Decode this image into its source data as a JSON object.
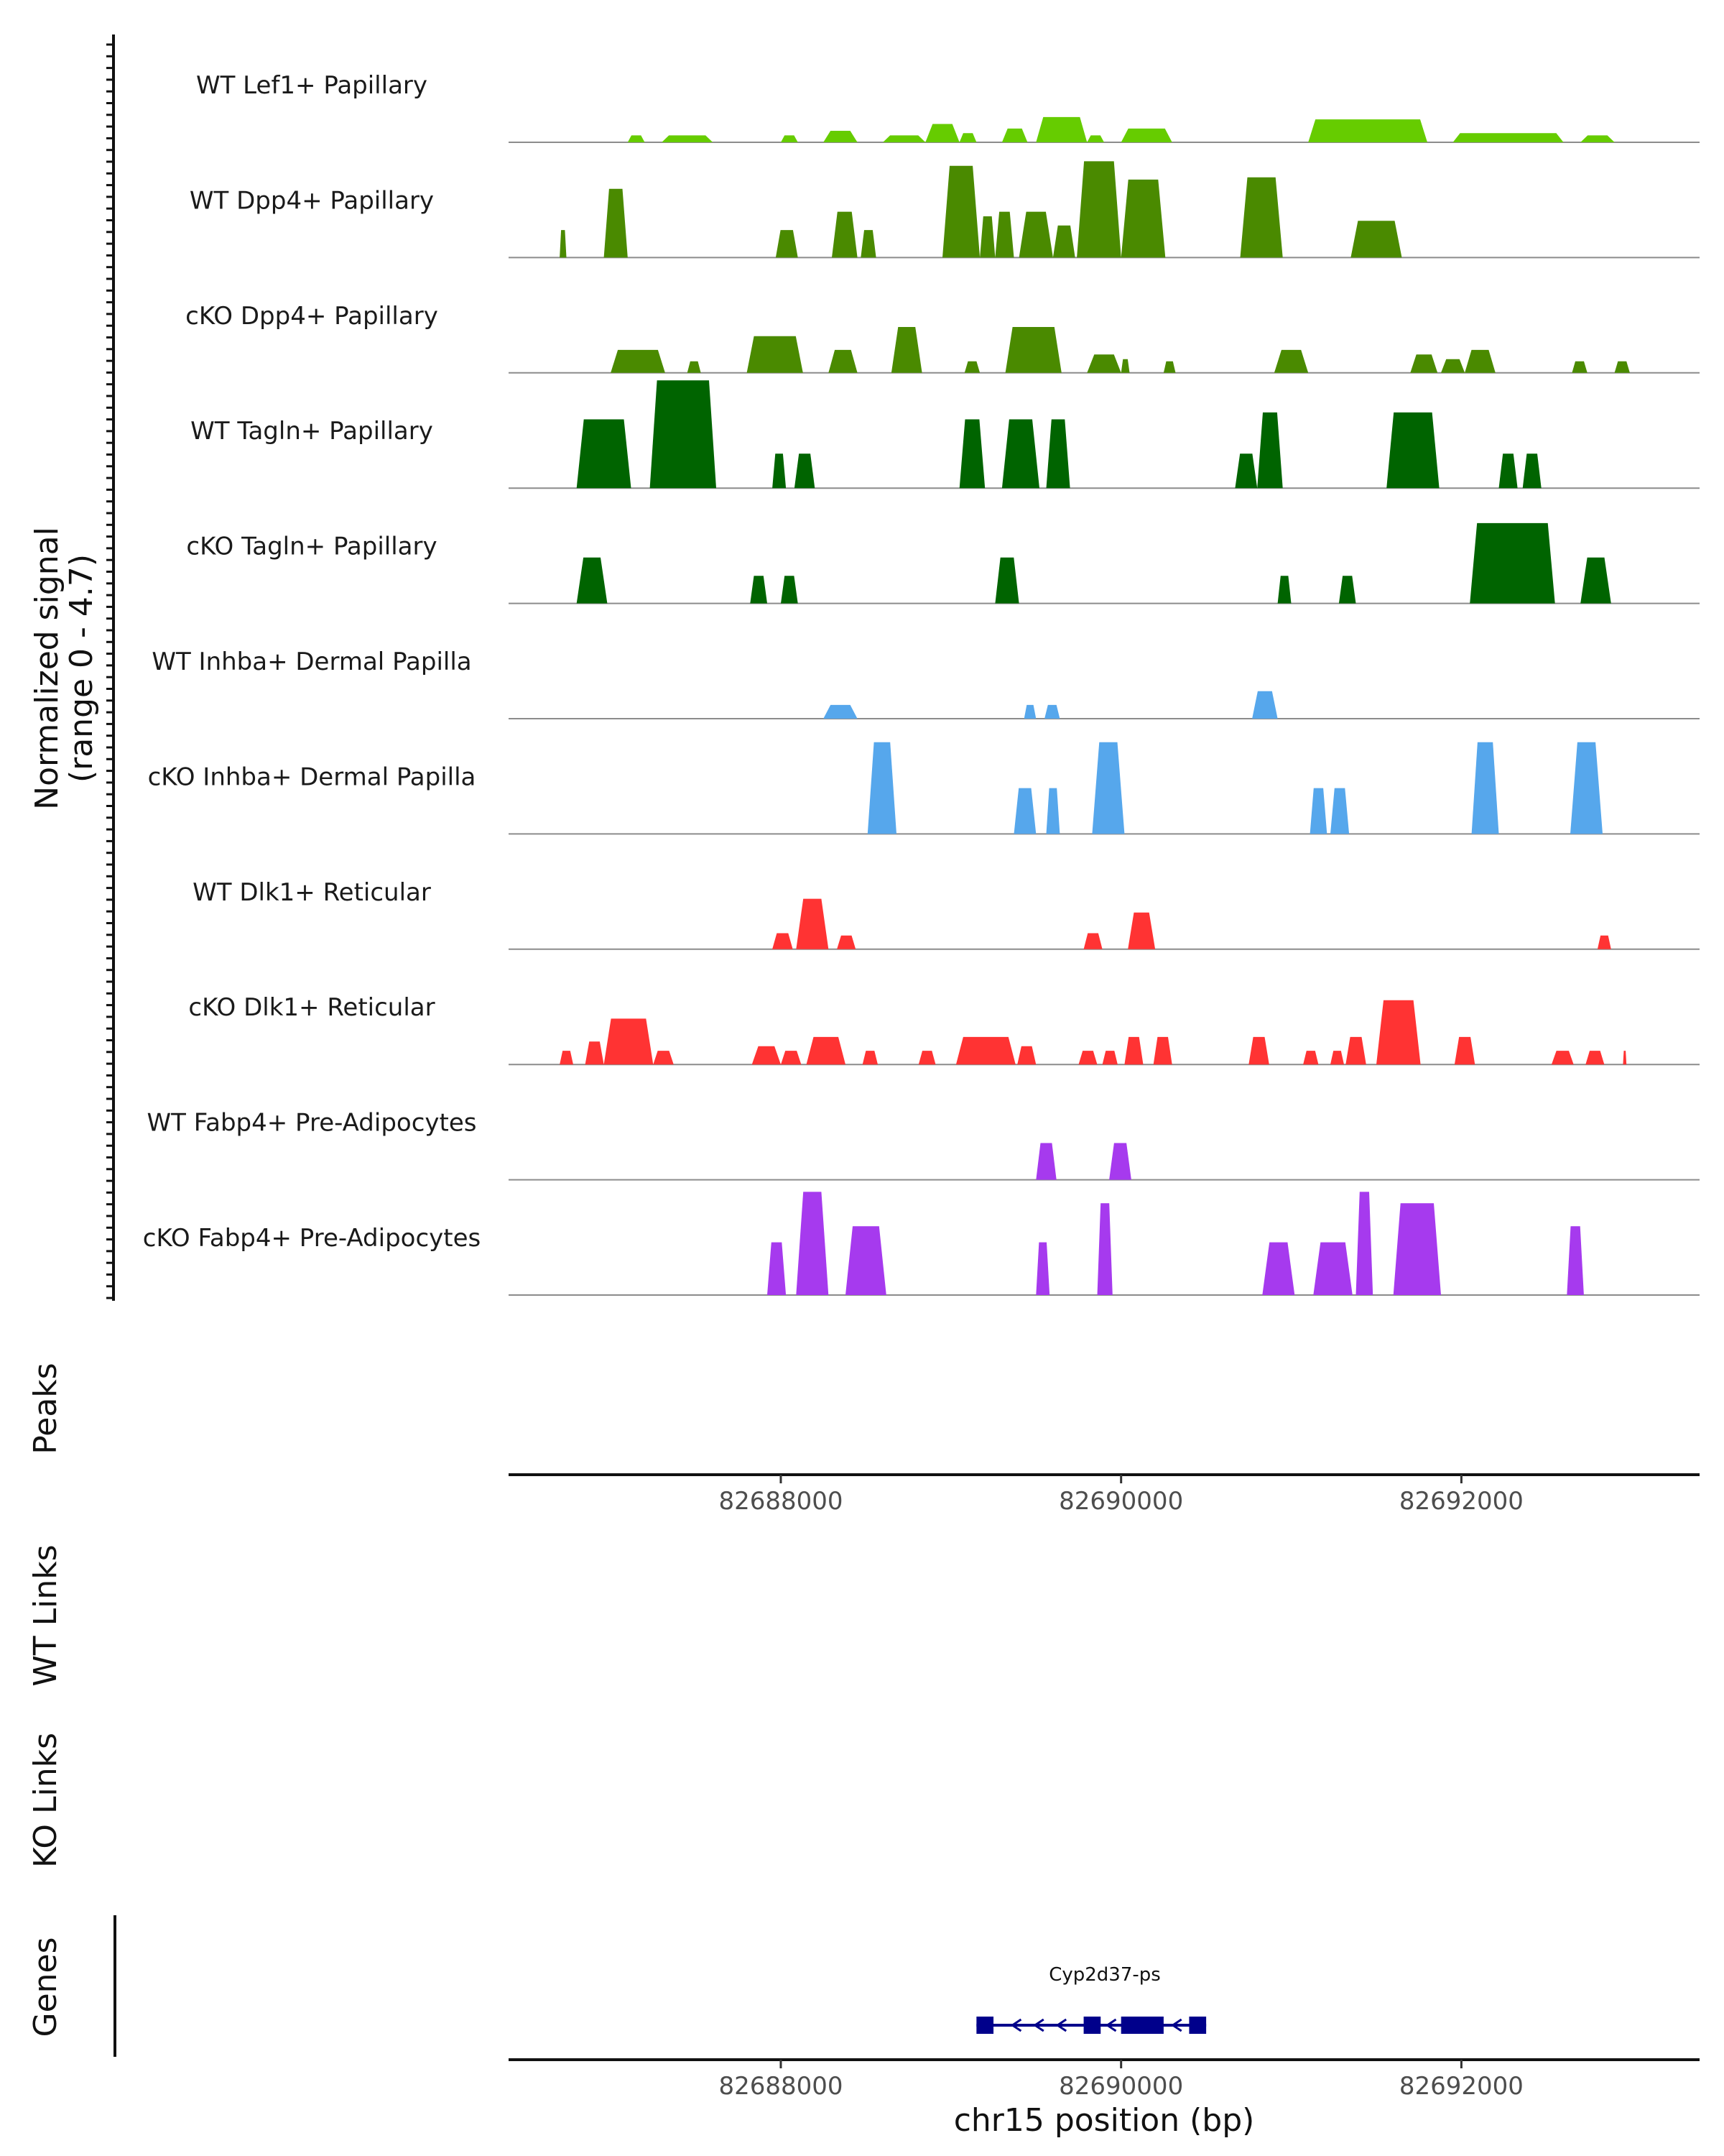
{
  "chart_data": {
    "type": "area",
    "chromosome": "chr15",
    "xlabel": "chr15 position (bp)",
    "xlim": [
      82686400,
      82693400
    ],
    "xticks": [
      82688000,
      82690000,
      82692000
    ],
    "xtick_labels": [
      "82688000",
      "82690000",
      "82692000"
    ],
    "ylabel_line1": "Normalized signal",
    "ylabel_line2": "(range 0 - 4.7)",
    "ylim": [
      0,
      4.7
    ],
    "tracks": [
      {
        "name": "WT Lef1+ Papillary",
        "color": "#66cc00",
        "peaks": [
          [
            82687100,
            82687200,
            0.3
          ],
          [
            82687300,
            82687600,
            0.3
          ],
          [
            82688000,
            82688100,
            0.3
          ],
          [
            82688250,
            82688450,
            0.5
          ],
          [
            82688600,
            82688850,
            0.3
          ],
          [
            82688850,
            82689050,
            0.8
          ],
          [
            82689050,
            82689150,
            0.4
          ],
          [
            82689300,
            82689450,
            0.6
          ],
          [
            82689500,
            82689800,
            1.1
          ],
          [
            82689800,
            82689900,
            0.3
          ],
          [
            82690000,
            82690300,
            0.6
          ],
          [
            82691100,
            82691800,
            1.0
          ],
          [
            82691950,
            82692600,
            0.4
          ],
          [
            82692700,
            82692900,
            0.3
          ]
        ]
      },
      {
        "name": "WT Dpp4+ Papillary",
        "color": "#4a8a00",
        "peaks": [
          [
            82686700,
            82686740,
            1.2
          ],
          [
            82686960,
            82687100,
            3.0
          ],
          [
            82687970,
            82688100,
            1.2
          ],
          [
            82688300,
            82688450,
            2.0
          ],
          [
            82688470,
            82688560,
            1.2
          ],
          [
            82688950,
            82689170,
            4.0
          ],
          [
            82689170,
            82689260,
            1.8
          ],
          [
            82689260,
            82689370,
            2.0
          ],
          [
            82689400,
            82689600,
            2.0
          ],
          [
            82689600,
            82689730,
            1.4
          ],
          [
            82689740,
            82690000,
            4.2
          ],
          [
            82690000,
            82690260,
            3.4
          ],
          [
            82690700,
            82690950,
            3.5
          ],
          [
            82691350,
            82691650,
            1.6
          ]
        ]
      },
      {
        "name": "cKO Dpp4+ Papillary",
        "color": "#4a8a00",
        "peaks": [
          [
            82687000,
            82687320,
            1.0
          ],
          [
            82687450,
            82687530,
            0.5
          ],
          [
            82687800,
            82688130,
            1.6
          ],
          [
            82688280,
            82688450,
            1.0
          ],
          [
            82688650,
            82688830,
            2.0
          ],
          [
            82689080,
            82689170,
            0.5
          ],
          [
            82689320,
            82689650,
            2.0
          ],
          [
            82689800,
            82690000,
            0.8
          ],
          [
            82690000,
            82690050,
            0.6
          ],
          [
            82690250,
            82690320,
            0.5
          ],
          [
            82690900,
            82691100,
            1.0
          ],
          [
            82691700,
            82691860,
            0.8
          ],
          [
            82691880,
            82692020,
            0.6
          ],
          [
            82692020,
            82692200,
            1.0
          ],
          [
            82692650,
            82692740,
            0.5
          ],
          [
            82692900,
            82692990,
            0.5
          ]
        ]
      },
      {
        "name": "WT Tagln+ Papillary",
        "color": "#006400",
        "peaks": [
          [
            82686800,
            82687120,
            3.0
          ],
          [
            82687230,
            82687620,
            4.7
          ],
          [
            82687950,
            82688030,
            1.5
          ],
          [
            82688080,
            82688200,
            1.5
          ],
          [
            82689050,
            82689200,
            3.0
          ],
          [
            82689300,
            82689520,
            3.0
          ],
          [
            82689560,
            82689700,
            3.0
          ],
          [
            82690670,
            82690800,
            1.5
          ],
          [
            82690800,
            82690950,
            3.3
          ],
          [
            82691560,
            82691870,
            3.3
          ],
          [
            82692220,
            82692330,
            1.5
          ],
          [
            82692360,
            82692470,
            1.5
          ]
        ]
      },
      {
        "name": "cKO Tagln+ Papillary",
        "color": "#006400",
        "peaks": [
          [
            82686800,
            82686980,
            2.0
          ],
          [
            82687820,
            82687920,
            1.2
          ],
          [
            82688000,
            82688100,
            1.2
          ],
          [
            82689260,
            82689400,
            2.0
          ],
          [
            82690920,
            82691000,
            1.2
          ],
          [
            82691280,
            82691380,
            1.2
          ],
          [
            82692050,
            82692550,
            3.5
          ],
          [
            82692700,
            82692880,
            2.0
          ]
        ]
      },
      {
        "name": "WT Inhba+ Dermal Papilla",
        "color": "#56a7ec",
        "peaks": [
          [
            82688250,
            82688450,
            0.6
          ],
          [
            82689430,
            82689500,
            0.6
          ],
          [
            82689550,
            82689640,
            0.6
          ],
          [
            82690770,
            82690920,
            1.2
          ]
        ]
      },
      {
        "name": "cKO Inhba+ Dermal Papilla",
        "color": "#56a7ec",
        "peaks": [
          [
            82688510,
            82688680,
            4.0
          ],
          [
            82689370,
            82689500,
            2.0
          ],
          [
            82689560,
            82689640,
            2.0
          ],
          [
            82689830,
            82690020,
            4.0
          ],
          [
            82691110,
            82691210,
            2.0
          ],
          [
            82691230,
            82691340,
            2.0
          ],
          [
            82692060,
            82692220,
            4.0
          ],
          [
            82692640,
            82692830,
            4.0
          ]
        ]
      },
      {
        "name": "WT Dlk1+ Reticular",
        "color": "#ff3333",
        "peaks": [
          [
            82687950,
            82688070,
            0.7
          ],
          [
            82688090,
            82688280,
            2.2
          ],
          [
            82688330,
            82688440,
            0.6
          ],
          [
            82689780,
            82689890,
            0.7
          ],
          [
            82690040,
            82690200,
            1.6
          ],
          [
            82692800,
            82692880,
            0.6
          ]
        ]
      },
      {
        "name": "cKO Dlk1+ Reticular",
        "color": "#ff3333",
        "peaks": [
          [
            82686700,
            82686780,
            0.6
          ],
          [
            82686850,
            82686960,
            1.0
          ],
          [
            82686960,
            82687250,
            2.0
          ],
          [
            82687250,
            82687370,
            0.6
          ],
          [
            82687830,
            82688000,
            0.8
          ],
          [
            82688000,
            82688120,
            0.6
          ],
          [
            82688150,
            82688380,
            1.2
          ],
          [
            82688480,
            82688570,
            0.6
          ],
          [
            82688810,
            82688910,
            0.6
          ],
          [
            82689030,
            82689380,
            1.2
          ],
          [
            82689390,
            82689500,
            0.8
          ],
          [
            82689750,
            82689860,
            0.6
          ],
          [
            82689890,
            82689980,
            0.6
          ],
          [
            82690020,
            82690130,
            1.2
          ],
          [
            82690190,
            82690300,
            1.2
          ],
          [
            82690750,
            82690870,
            1.2
          ],
          [
            82691070,
            82691160,
            0.6
          ],
          [
            82691230,
            82691310,
            0.6
          ],
          [
            82691320,
            82691440,
            1.2
          ],
          [
            82691500,
            82691760,
            2.8
          ],
          [
            82691960,
            82692080,
            1.2
          ],
          [
            82692530,
            82692660,
            0.6
          ],
          [
            82692730,
            82692840,
            0.6
          ],
          [
            82692950,
            82692970,
            0.6
          ]
        ]
      },
      {
        "name": "WT Fabp4+ Pre-Adipocytes",
        "color": "#a63aee",
        "peaks": [
          [
            82689500,
            82689620,
            1.6
          ],
          [
            82689930,
            82690060,
            1.6
          ]
        ]
      },
      {
        "name": "cKO Fabp4+ Pre-Adipocytes",
        "color": "#a63aee",
        "peaks": [
          [
            82687920,
            82688030,
            2.3
          ],
          [
            82688090,
            82688280,
            4.5
          ],
          [
            82688380,
            82688620,
            3.0
          ],
          [
            82689500,
            82689580,
            2.3
          ],
          [
            82689860,
            82689950,
            4.0
          ],
          [
            82690830,
            82691020,
            2.3
          ],
          [
            82691130,
            82691360,
            2.3
          ],
          [
            82691380,
            82691480,
            4.5
          ],
          [
            82691600,
            82691880,
            4.0
          ],
          [
            82692620,
            82692720,
            3.0
          ]
        ]
      }
    ],
    "panel_labels": {
      "peaks": "Peaks",
      "wt_links": "WT Links",
      "ko_links": "KO Links",
      "genes": "Genes"
    },
    "gene": {
      "name": "Cyp2d37-ps",
      "strand": "-",
      "start": 82689150,
      "end": 82690500,
      "exons": [
        [
          82689150,
          82689250
        ],
        [
          82689780,
          82689880
        ],
        [
          82690000,
          82690250
        ],
        [
          82690400,
          82690500
        ]
      ],
      "color": "#00008b"
    }
  }
}
